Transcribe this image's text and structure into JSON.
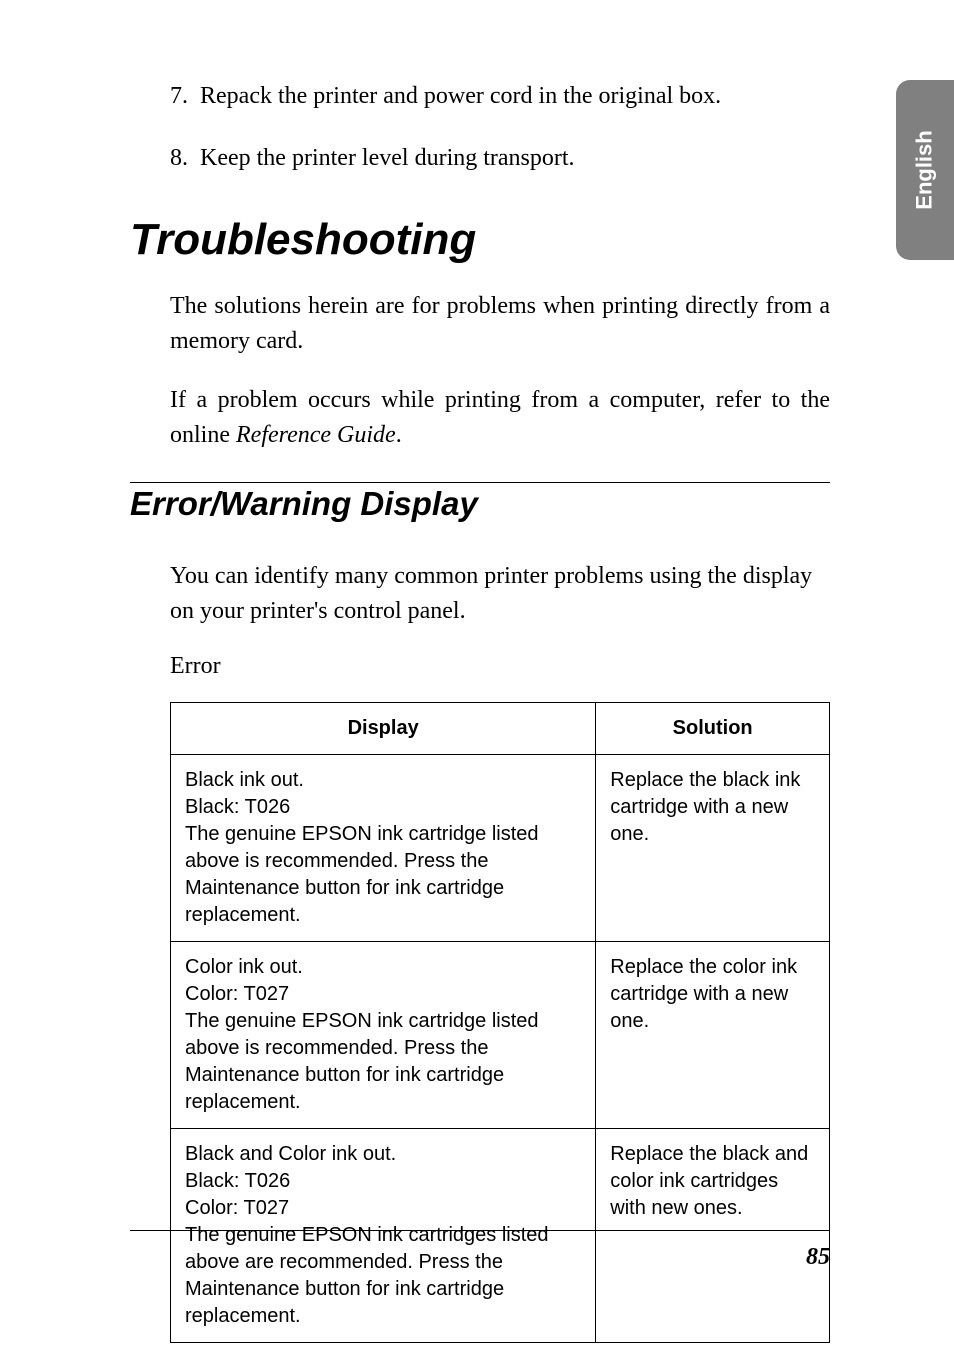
{
  "side_tab": {
    "label": "English",
    "bg_color": "#808080",
    "text_color": "#ffffff"
  },
  "list": {
    "item7": {
      "num": "7.",
      "text": "Repack the printer and power cord in the original box."
    },
    "item8": {
      "num": "8.",
      "text": "Keep the printer level during transport."
    }
  },
  "h1": "Troubleshooting",
  "para1": "The solutions herein are for problems when printing directly from a memory card.",
  "para2_pre": "If a problem occurs while printing from a computer, refer to the online ",
  "para2_em": "Reference Guide",
  "para2_post": ".",
  "h2": "Error/Warning Display",
  "para3": "You can identify many common printer problems using the display on your printer's control panel.",
  "error_label": "Error",
  "table": {
    "headers": {
      "display": "Display",
      "solution": "Solution"
    },
    "col_widths": {
      "display": 426,
      "solution": 234
    },
    "rows": [
      {
        "display": "Black ink out.\nBlack: T026\nThe genuine EPSON ink cartridge listed above is recommended. Press the Maintenance button for ink cartridge replacement.",
        "solution": "Replace the black ink cartridge with a new one."
      },
      {
        "display": "Color ink out.\nColor: T027\nThe genuine EPSON ink cartridge listed above is recommended. Press the Maintenance button for ink cartridge replacement.",
        "solution": "Replace the color ink cartridge with a new one."
      },
      {
        "display": "Black and Color ink out.\nBlack: T026\nColor: T027\nThe genuine EPSON ink cartridges listed above are recommended. Press the Maintenance button for ink cartridge replacement.",
        "solution": "Replace the black and color ink cartridges with new ones."
      }
    ]
  },
  "page_number": "85",
  "colors": {
    "text": "#000000",
    "background": "#ffffff",
    "rule": "#000000"
  },
  "typography": {
    "body_family": "Georgia, Times New Roman, serif",
    "heading_family": "Arial, Helvetica, sans-serif",
    "body_size": 24,
    "h1_size": 44,
    "h2_size": 33,
    "table_size": 20
  }
}
